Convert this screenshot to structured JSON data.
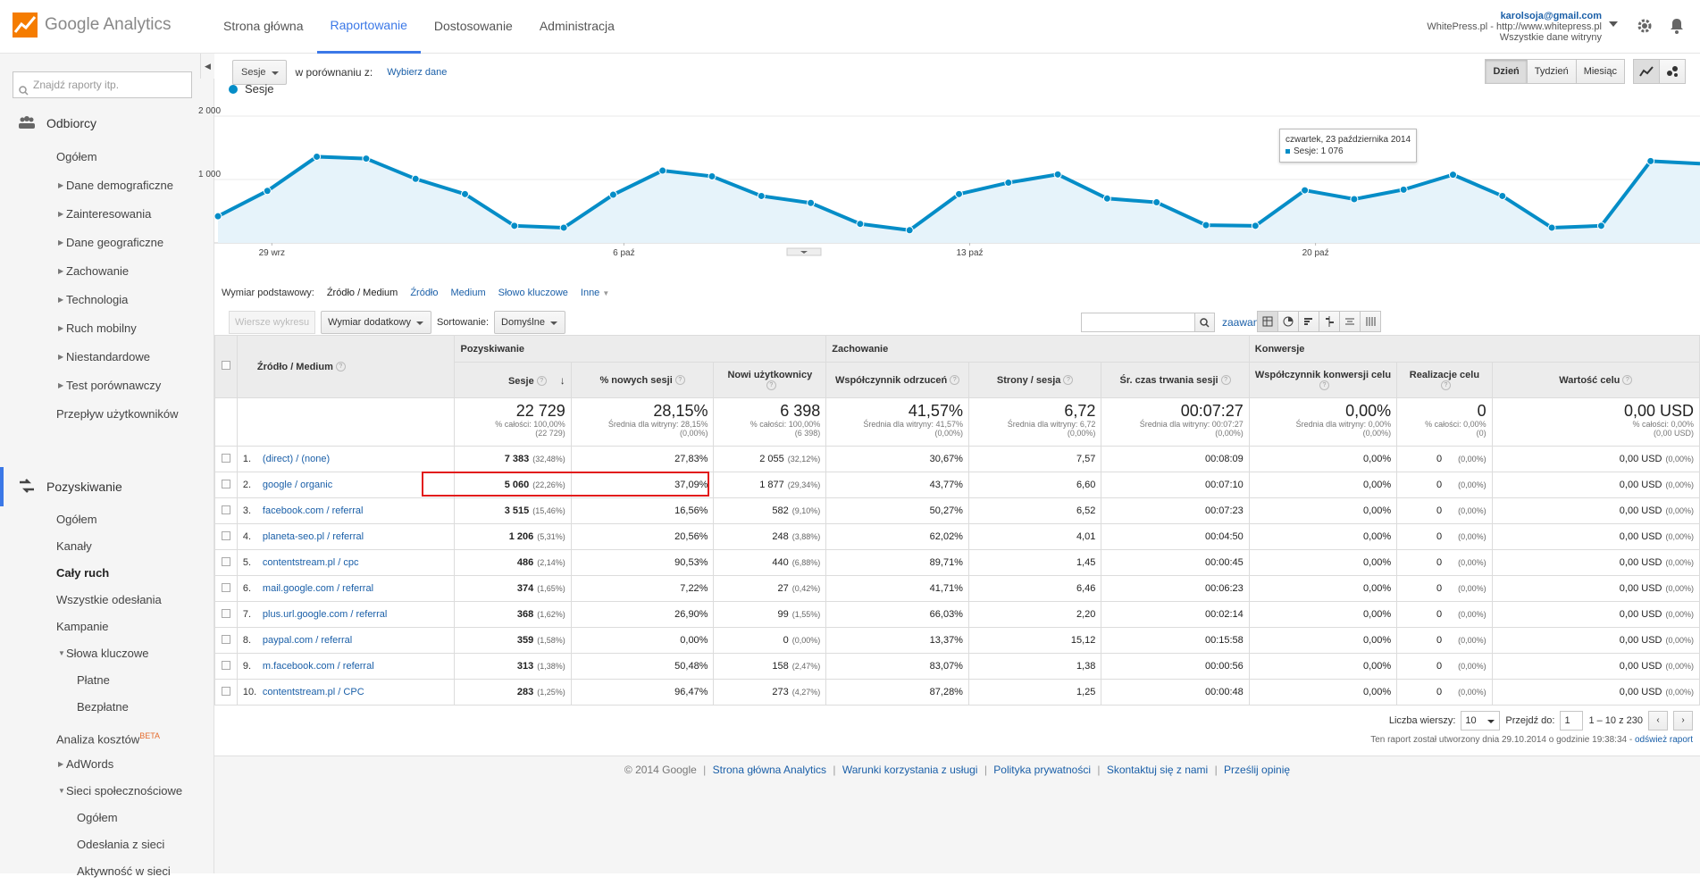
{
  "header": {
    "logo_text": "Google Analytics",
    "tabs": [
      "Strona główna",
      "Raportowanie",
      "Dostosowanie",
      "Administracja"
    ],
    "active_tab": "Raportowanie",
    "account_email": "karolsoja@gmail.com",
    "account_property": "WhitePress.pl - http://www.whitepress.pl",
    "account_view": "Wszystkie dane witryny"
  },
  "sidebar": {
    "search_placeholder": "Znajdź raporty itp.",
    "audience": {
      "title": "Odbiorcy",
      "items": [
        "Ogółem",
        "Dane demograficzne",
        "Zainteresowania",
        "Dane geograficzne",
        "Zachowanie",
        "Technologia",
        "Ruch mobilny",
        "Niestandardowe",
        "Test porównawczy",
        "Przepływ użytkowników"
      ]
    },
    "acquisition": {
      "title": "Pozyskiwanie",
      "items": [
        "Ogółem",
        "Kanały",
        "Cały ruch",
        "Wszystkie odesłania",
        "Kampanie",
        "Słowa kluczowe",
        "Płatne",
        "Bezpłatne",
        "Analiza kosztów",
        "AdWords",
        "Sieci społecznościowe",
        "Ogółem",
        "Odesłania z sieci",
        "Aktywność w sieci"
      ],
      "beta_label": "BETA"
    }
  },
  "toolbar": {
    "metric": "Sesje",
    "compare_label": "w porównaniu z:",
    "compare_link": "Wybierz dane",
    "ranges": [
      "Dzień",
      "Tydzień",
      "Miesiąc"
    ],
    "active_range": "Dzień"
  },
  "chart_data": {
    "type": "area",
    "series": [
      {
        "name": "Sesje",
        "values": [
          420,
          820,
          1360,
          1330,
          1010,
          770,
          270,
          240,
          760,
          1140,
          1050,
          740,
          630,
          300,
          200,
          770,
          950,
          1080,
          700,
          640,
          280,
          270,
          830,
          690,
          840,
          1076,
          740,
          240,
          270,
          1290,
          1250
        ]
      }
    ],
    "x_tick_labels": [
      "29 wrz",
      "6 paź",
      "13 paź",
      "20 paź"
    ],
    "y_tick_labels": [
      "1 000",
      "2 000"
    ],
    "ylim": [
      0,
      2000
    ],
    "grid": true,
    "color": "#058dc7"
  },
  "tooltip": {
    "date": "czwartek, 23 października 2014",
    "value_text": "Sesje: 1 076"
  },
  "dimension": {
    "label": "Wymiar podstawowy:",
    "current": "Źródło / Medium",
    "links": [
      "Źródło",
      "Medium",
      "Słowo kluczowe",
      "Inne"
    ]
  },
  "controls": {
    "plot_rows": "Wiersze wykresu",
    "secondary_dim": "Wymiar dodatkowy",
    "sort_label": "Sortowanie:",
    "sort_value": "Domyślne",
    "advanced": "zaawansowane"
  },
  "table": {
    "groups": [
      "Pozyskiwanie",
      "Zachowanie",
      "Konwersje"
    ],
    "dim_header": "Źródło / Medium",
    "columns": [
      "Sesje",
      "% nowych sesji",
      "Nowi użytkownicy",
      "Współczynnik odrzuceń",
      "Strony / sesja",
      "Śr. czas trwania sesji",
      "Współczynnik konwersji celu",
      "Realizacje celu",
      "Wartość celu"
    ],
    "totals": [
      {
        "big": "22 729",
        "sub1": "% całości: 100,00%",
        "sub2": "(22 729)"
      },
      {
        "big": "28,15%",
        "sub1": "Średnia dla witryny: 28,15%",
        "sub2": "(0,00%)"
      },
      {
        "big": "6 398",
        "sub1": "% całości: 100,00%",
        "sub2": "(6 398)"
      },
      {
        "big": "41,57%",
        "sub1": "Średnia dla witryny: 41,57%",
        "sub2": "(0,00%)"
      },
      {
        "big": "6,72",
        "sub1": "Średnia dla witryny: 6,72",
        "sub2": "(0,00%)"
      },
      {
        "big": "00:07:27",
        "sub1": "Średnia dla witryny: 00:07:27",
        "sub2": "(0,00%)"
      },
      {
        "big": "0,00%",
        "sub1": "Średnia dla witryny: 0,00%",
        "sub2": "(0,00%)"
      },
      {
        "big": "0",
        "sub1": "% całości: 0,00%",
        "sub2": "(0)"
      },
      {
        "big": "0,00 USD",
        "sub1": "% całości: 0,00%",
        "sub2": "(0,00 USD)"
      }
    ],
    "rows": [
      {
        "n": "1.",
        "src": "(direct) / (none)",
        "sessions": "7 383",
        "sessions_pct": "(32,48%)",
        "new_pct": "27,83%",
        "new_users": "2 055",
        "new_users_pct": "(32,12%)",
        "bounce": "30,67%",
        "pages": "7,57",
        "dur": "00:08:09",
        "conv": "0,00%",
        "goals": "0",
        "goals_pct": "(0,00%)",
        "value": "0,00 USD",
        "value_pct": "(0,00%)"
      },
      {
        "n": "2.",
        "src": "google / organic",
        "sessions": "5 060",
        "sessions_pct": "(22,26%)",
        "new_pct": "37,09%",
        "new_users": "1 877",
        "new_users_pct": "(29,34%)",
        "bounce": "43,77%",
        "pages": "6,60",
        "dur": "00:07:10",
        "conv": "0,00%",
        "goals": "0",
        "goals_pct": "(0,00%)",
        "value": "0,00 USD",
        "value_pct": "(0,00%)"
      },
      {
        "n": "3.",
        "src": "facebook.com / referral",
        "sessions": "3 515",
        "sessions_pct": "(15,46%)",
        "new_pct": "16,56%",
        "new_users": "582",
        "new_users_pct": "(9,10%)",
        "bounce": "50,27%",
        "pages": "6,52",
        "dur": "00:07:23",
        "conv": "0,00%",
        "goals": "0",
        "goals_pct": "(0,00%)",
        "value": "0,00 USD",
        "value_pct": "(0,00%)"
      },
      {
        "n": "4.",
        "src": "planeta-seo.pl / referral",
        "sessions": "1 206",
        "sessions_pct": "(5,31%)",
        "new_pct": "20,56%",
        "new_users": "248",
        "new_users_pct": "(3,88%)",
        "bounce": "62,02%",
        "pages": "4,01",
        "dur": "00:04:50",
        "conv": "0,00%",
        "goals": "0",
        "goals_pct": "(0,00%)",
        "value": "0,00 USD",
        "value_pct": "(0,00%)"
      },
      {
        "n": "5.",
        "src": "contentstream.pl / cpc",
        "sessions": "486",
        "sessions_pct": "(2,14%)",
        "new_pct": "90,53%",
        "new_users": "440",
        "new_users_pct": "(6,88%)",
        "bounce": "89,71%",
        "pages": "1,45",
        "dur": "00:00:45",
        "conv": "0,00%",
        "goals": "0",
        "goals_pct": "(0,00%)",
        "value": "0,00 USD",
        "value_pct": "(0,00%)"
      },
      {
        "n": "6.",
        "src": "mail.google.com / referral",
        "sessions": "374",
        "sessions_pct": "(1,65%)",
        "new_pct": "7,22%",
        "new_users": "27",
        "new_users_pct": "(0,42%)",
        "bounce": "41,71%",
        "pages": "6,46",
        "dur": "00:06:23",
        "conv": "0,00%",
        "goals": "0",
        "goals_pct": "(0,00%)",
        "value": "0,00 USD",
        "value_pct": "(0,00%)"
      },
      {
        "n": "7.",
        "src": "plus.url.google.com / referral",
        "sessions": "368",
        "sessions_pct": "(1,62%)",
        "new_pct": "26,90%",
        "new_users": "99",
        "new_users_pct": "(1,55%)",
        "bounce": "66,03%",
        "pages": "2,20",
        "dur": "00:02:14",
        "conv": "0,00%",
        "goals": "0",
        "goals_pct": "(0,00%)",
        "value": "0,00 USD",
        "value_pct": "(0,00%)"
      },
      {
        "n": "8.",
        "src": "paypal.com / referral",
        "sessions": "359",
        "sessions_pct": "(1,58%)",
        "new_pct": "0,00%",
        "new_users": "0",
        "new_users_pct": "(0,00%)",
        "bounce": "13,37%",
        "pages": "15,12",
        "dur": "00:15:58",
        "conv": "0,00%",
        "goals": "0",
        "goals_pct": "(0,00%)",
        "value": "0,00 USD",
        "value_pct": "(0,00%)"
      },
      {
        "n": "9.",
        "src": "m.facebook.com / referral",
        "sessions": "313",
        "sessions_pct": "(1,38%)",
        "new_pct": "50,48%",
        "new_users": "158",
        "new_users_pct": "(2,47%)",
        "bounce": "83,07%",
        "pages": "1,38",
        "dur": "00:00:56",
        "conv": "0,00%",
        "goals": "0",
        "goals_pct": "(0,00%)",
        "value": "0,00 USD",
        "value_pct": "(0,00%)"
      },
      {
        "n": "10.",
        "src": "contentstream.pl / CPC",
        "sessions": "283",
        "sessions_pct": "(1,25%)",
        "new_pct": "96,47%",
        "new_users": "273",
        "new_users_pct": "(4,27%)",
        "bounce": "87,28%",
        "pages": "1,25",
        "dur": "00:00:48",
        "conv": "0,00%",
        "goals": "0",
        "goals_pct": "(0,00%)",
        "value": "0,00 USD",
        "value_pct": "(0,00%)"
      }
    ]
  },
  "pager": {
    "rows_label": "Liczba wierszy:",
    "rows_value": "10",
    "goto_label": "Przejdź do:",
    "goto_value": "1",
    "range_text": "1 – 10 z 230",
    "prev": "‹",
    "next": "›"
  },
  "generated": {
    "text": "Ten raport został utworzony dnia 29.10.2014 o godzinie 19:38:34 -",
    "refresh": "odśwież raport"
  },
  "footer": {
    "copyright": "© 2014 Google",
    "links": [
      "Strona główna Analytics",
      "Warunki korzystania z usługi",
      "Polityka prywatności",
      "Skontaktuj się z nami",
      "Prześlij opinię"
    ],
    "sep": "|"
  }
}
